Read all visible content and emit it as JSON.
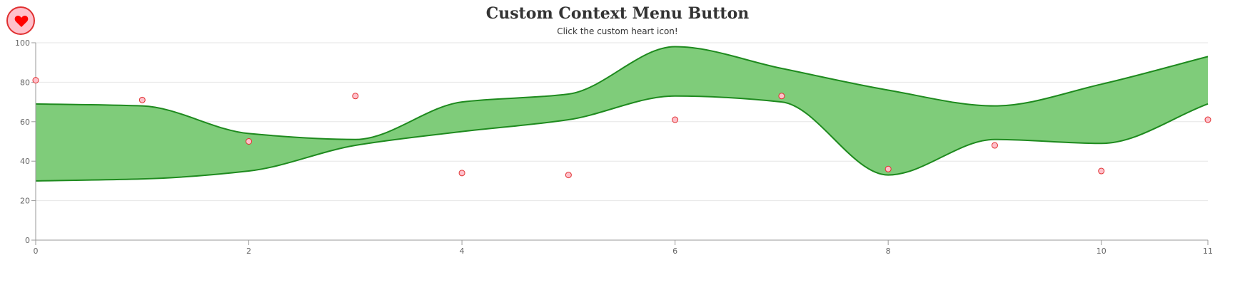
{
  "header": {
    "title": "Custom Context Menu Button",
    "subtitle": "Click the custom heart icon!"
  },
  "context_button": {
    "icon": "heart-icon",
    "fill_color": "#ffc0cb",
    "border_color": "#e03030",
    "icon_color": "#ff0000"
  },
  "chart_data": {
    "type": "area",
    "title": "Custom Context Menu Button",
    "subtitle": "Click the custom heart icon!",
    "xlabel": "",
    "ylabel": "",
    "xlim": [
      0,
      11
    ],
    "ylim": [
      0,
      100
    ],
    "x_ticks": [
      0,
      2,
      4,
      6,
      8,
      10,
      11
    ],
    "y_ticks": [
      0,
      20,
      40,
      60,
      80,
      100
    ],
    "grid": true,
    "x": [
      0,
      1,
      2,
      3,
      4,
      5,
      6,
      7,
      8,
      9,
      10,
      11
    ],
    "range_series": {
      "low": [
        30,
        31,
        35,
        48,
        55,
        61,
        73,
        70,
        33,
        51,
        49,
        69
      ],
      "high": [
        69,
        68,
        54,
        51,
        70,
        74,
        98,
        87,
        76,
        68,
        79,
        93
      ],
      "fill_color": "#7fcc7a",
      "line_color": "#1e8a1e"
    },
    "scatter_series": {
      "values": [
        81,
        71,
        50,
        73,
        34,
        33,
        61,
        73,
        36,
        48,
        35,
        61
      ],
      "fill_color": "#ffc0cb",
      "line_color": "#e03030"
    }
  }
}
